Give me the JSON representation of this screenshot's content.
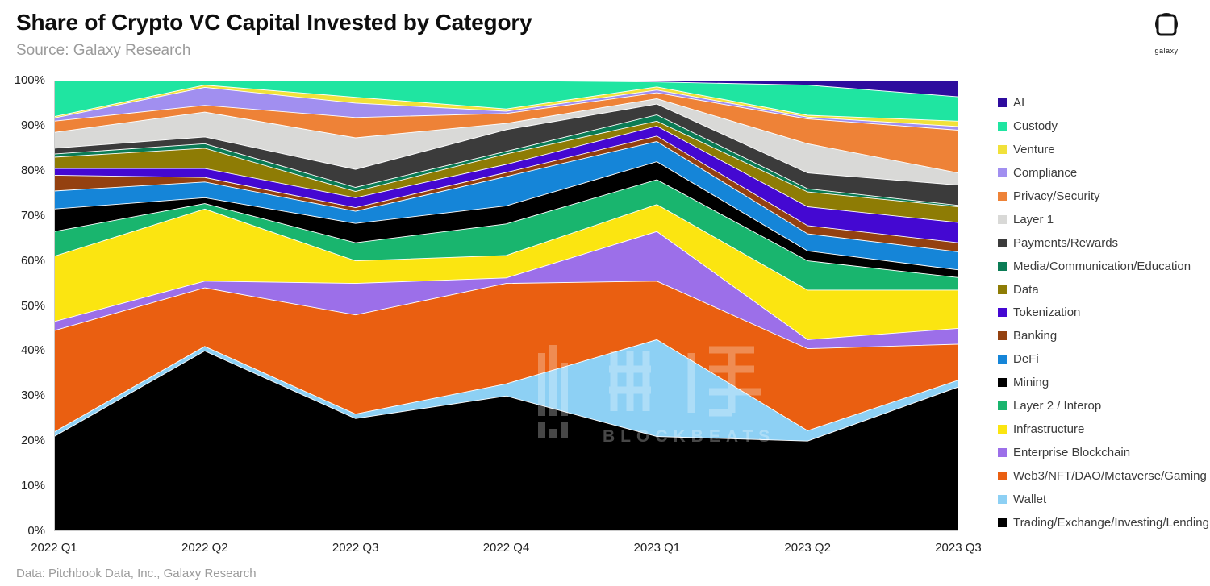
{
  "header": {
    "title": "Share of Crypto VC Capital Invested by Category",
    "subtitle": "Source: Galaxy Research",
    "logo_label": "galaxy"
  },
  "footer": {
    "note": "Data: Pitchbook Data, Inc., Galaxy Research"
  },
  "watermark": {
    "brand": "BLOCKBEATS"
  },
  "chart_data": {
    "type": "area",
    "stacked": true,
    "percent": true,
    "title": "Share of Crypto VC Capital Invested by Category",
    "xlabel": "",
    "ylabel": "",
    "ylim": [
      0,
      100
    ],
    "grid": false,
    "legend_position": "right",
    "x": [
      "2022 Q1",
      "2022 Q2",
      "2022 Q3",
      "2022 Q4",
      "2023 Q1",
      "2023 Q2",
      "2023 Q3"
    ],
    "y_ticks": [
      "0%",
      "10%",
      "20%",
      "30%",
      "40%",
      "50%",
      "60%",
      "70%",
      "80%",
      "90%",
      "100%"
    ],
    "series": [
      {
        "name": "AI",
        "color": "#2e0c9e",
        "values": [
          0,
          0,
          0,
          0,
          0.3,
          1,
          3.6
        ]
      },
      {
        "name": "Custody",
        "color": "#1fe5a1",
        "values": [
          8,
          1,
          3.7,
          6.3,
          1.1,
          6.7,
          5.4
        ]
      },
      {
        "name": "Venture",
        "color": "#f1e13a",
        "values": [
          0.3,
          0.5,
          1.3,
          0.5,
          0.7,
          0.4,
          1.2
        ]
      },
      {
        "name": "Compliance",
        "color": "#a18ff0",
        "values": [
          0.7,
          4,
          3.2,
          0.5,
          0.6,
          0.4,
          0.8
        ]
      },
      {
        "name": "Privacy/Security",
        "color": "#ee8237",
        "values": [
          2.5,
          1.5,
          4.5,
          2.2,
          1.3,
          5.5,
          9.5
        ]
      },
      {
        "name": "Layer 1",
        "color": "#d9d9d7",
        "values": [
          3.5,
          5.5,
          7,
          1.4,
          1.2,
          6.5,
          2.7
        ]
      },
      {
        "name": "Payments/Rewards",
        "color": "#3b3b3b",
        "values": [
          1.3,
          1.5,
          4,
          4.8,
          2.4,
          3.5,
          4.5
        ]
      },
      {
        "name": "Media/Communication/Education",
        "color": "#0b7c55",
        "values": [
          0.7,
          1,
          0.9,
          0.6,
          1.4,
          0.7,
          0.3
        ]
      },
      {
        "name": "Data",
        "color": "#8e7c05",
        "values": [
          2.5,
          4.5,
          1.4,
          2.3,
          1.1,
          3.3,
          3.5
        ]
      },
      {
        "name": "Tokenization",
        "color": "#4408d2",
        "values": [
          1.5,
          2,
          2.2,
          1.8,
          2.2,
          4.2,
          4.5
        ]
      },
      {
        "name": "Banking",
        "color": "#944110",
        "values": [
          3.5,
          1,
          0.8,
          0.9,
          1.2,
          1.8,
          2
        ]
      },
      {
        "name": "DeFi",
        "color": "#1585d8",
        "values": [
          4,
          3.5,
          2.7,
          6.5,
          4.5,
          3.8,
          4
        ]
      },
      {
        "name": "Mining",
        "color": "#000000",
        "values": [
          5,
          1.3,
          4.3,
          4,
          4,
          2.2,
          1.7
        ]
      },
      {
        "name": "Layer 2 / Interop",
        "color": "#19b56e",
        "values": [
          5.5,
          1.2,
          4,
          7,
          5.5,
          6.5,
          2.8
        ]
      },
      {
        "name": "Infrastructure",
        "color": "#fbe511",
        "values": [
          14.5,
          16,
          5,
          5,
          6,
          11,
          8.5
        ]
      },
      {
        "name": "Enterprise Blockchain",
        "color": "#9c6fe9",
        "values": [
          2,
          1.5,
          7,
          1.2,
          11,
          2,
          3.5
        ]
      },
      {
        "name": "Web3/NFT/DAO/Metaverse/Gaming",
        "color": "#ea5f11",
        "values": [
          22.5,
          13,
          22,
          22.3,
          13,
          18.2,
          8
        ]
      },
      {
        "name": "Wallet",
        "color": "#8dd0f4",
        "values": [
          1,
          1,
          1,
          2.7,
          21.5,
          2.3,
          1.5
        ]
      },
      {
        "name": "Trading/Exchange/Investing/Lending",
        "color": "#000000",
        "values": [
          21,
          40,
          25,
          30,
          21,
          20,
          32
        ]
      }
    ]
  }
}
